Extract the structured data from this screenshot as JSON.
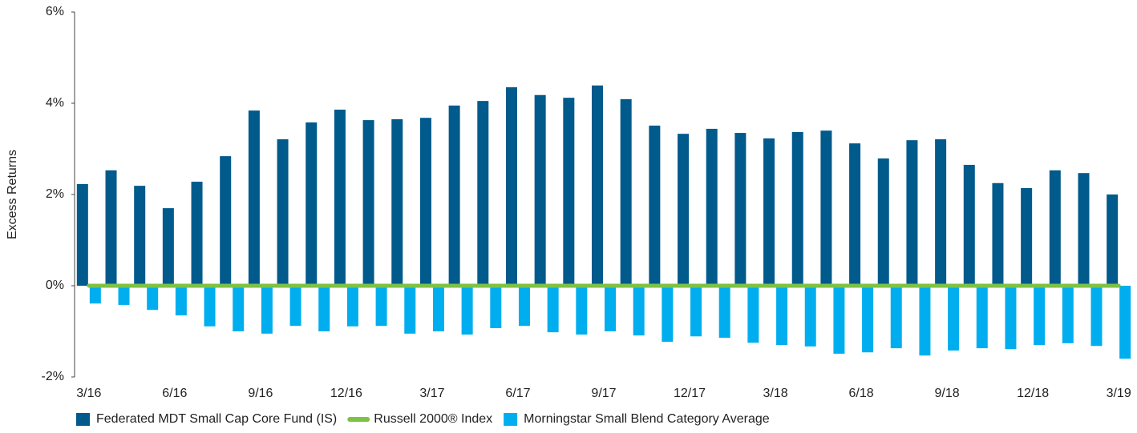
{
  "chart_data": {
    "type": "bar",
    "y_label": "Excess Returns",
    "categories": [
      "3/16",
      null,
      null,
      "6/16",
      null,
      null,
      "9/16",
      null,
      null,
      "12/16",
      null,
      null,
      "3/17",
      null,
      null,
      "6/17",
      null,
      null,
      "9/17",
      null,
      null,
      "12/17",
      null,
      null,
      "3/18",
      null,
      null,
      "6/18",
      null,
      null,
      "9/18",
      null,
      null,
      "12/18",
      null,
      null,
      "3/19"
    ],
    "series": [
      {
        "name": "Federated MDT Small Cap Core Fund (IS)",
        "color": "#005a8c",
        "kind": "bar",
        "values": [
          2.23,
          2.53,
          2.19,
          1.7,
          2.28,
          2.84,
          3.84,
          3.21,
          3.58,
          3.86,
          3.63,
          3.65,
          3.68,
          3.95,
          4.05,
          4.35,
          4.18,
          4.12,
          4.39,
          4.09,
          3.51,
          3.33,
          3.44,
          3.35,
          3.23,
          3.37,
          3.4,
          3.12,
          2.79,
          3.19,
          3.21,
          2.65,
          2.25,
          2.14,
          2.53,
          2.47,
          2.0
        ]
      },
      {
        "name": "Russell 2000® Index",
        "color": "#7dc243",
        "kind": "line",
        "values": [
          0,
          0,
          0,
          0,
          0,
          0,
          0,
          0,
          0,
          0,
          0,
          0,
          0,
          0,
          0,
          0,
          0,
          0,
          0,
          0,
          0,
          0,
          0,
          0,
          0,
          0,
          0,
          0,
          0,
          0,
          0,
          0,
          0,
          0,
          0,
          0,
          0
        ]
      },
      {
        "name": "Morningstar Small Blend Category Average",
        "color": "#00aeef",
        "kind": "bar",
        "values": [
          -0.39,
          -0.42,
          -0.53,
          -0.65,
          -0.89,
          -1.0,
          -1.05,
          -0.88,
          -1.0,
          -0.89,
          -0.88,
          -1.05,
          -1.0,
          -1.07,
          -0.93,
          -0.88,
          -1.02,
          -1.07,
          -1.0,
          -1.09,
          -1.23,
          -1.11,
          -1.14,
          -1.25,
          -1.3,
          -1.33,
          -1.49,
          -1.46,
          -1.37,
          -1.53,
          -1.42,
          -1.37,
          -1.39,
          -1.3,
          -1.26,
          -1.32,
          -1.6
        ]
      }
    ],
    "ylim": [
      -2,
      6
    ],
    "yticks": [
      {
        "value": -2,
        "label": "-2%"
      },
      {
        "value": 0,
        "label": "0%"
      },
      {
        "value": 2,
        "label": "2%"
      },
      {
        "value": 4,
        "label": "4%"
      },
      {
        "value": 6,
        "label": "6%"
      }
    ],
    "legend": "bottom-left"
  }
}
